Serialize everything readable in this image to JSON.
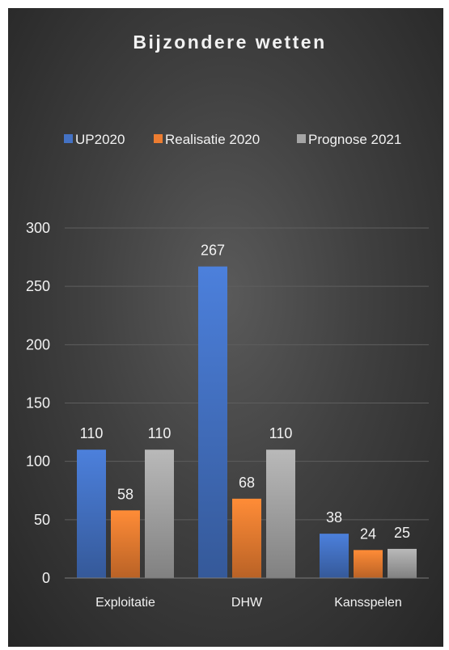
{
  "chart_data": {
    "type": "bar",
    "title": "Bijzondere wetten",
    "categories": [
      "Exploitatie",
      "DHW",
      "Kansspelen"
    ],
    "series": [
      {
        "name": "UP2020",
        "values": [
          110,
          267,
          38
        ],
        "color": "#4472c4"
      },
      {
        "name": "Realisatie 2020",
        "values": [
          58,
          68,
          24
        ],
        "color": "#ed7d31"
      },
      {
        "name": "Prognose 2021",
        "values": [
          110,
          110,
          25
        ],
        "color": "#a5a5a5"
      }
    ],
    "ylim": [
      0,
      300
    ],
    "yticks": [
      0,
      50,
      100,
      150,
      200,
      250,
      300
    ],
    "grid": true,
    "legend": "top",
    "data_labels": true
  }
}
